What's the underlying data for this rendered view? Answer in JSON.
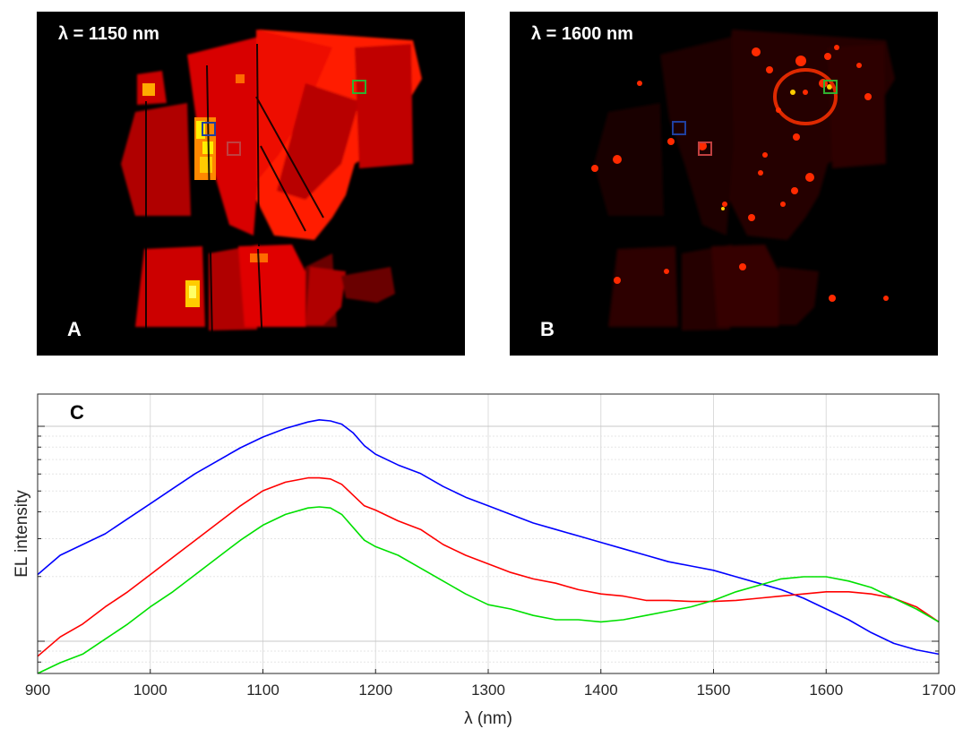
{
  "panels": [
    {
      "letter": "A",
      "wavelength_label": "λ = 1150 nm"
    },
    {
      "letter": "B",
      "wavelength_label": "λ = 1600 nm"
    }
  ],
  "colors": {
    "blue": "#0000ff",
    "red": "#ff0000",
    "green": "#00e000"
  },
  "chart_data": {
    "type": "line",
    "panel_letter": "C",
    "xlabel": "λ (nm)",
    "ylabel": "EL intensity",
    "xlim": [
      900,
      1700
    ],
    "xticks": [
      900,
      1000,
      1100,
      1200,
      1300,
      1400,
      1500,
      1600,
      1700
    ],
    "ylim": [
      -3.15,
      -1.85
    ],
    "yscale": "log",
    "yticks_major": [
      -3,
      -2.5,
      -2
    ],
    "grid": true,
    "legend": "none",
    "series": [
      {
        "color": "blue",
        "x": [
          900,
          920,
          940,
          960,
          980,
          1000,
          1020,
          1040,
          1060,
          1080,
          1100,
          1120,
          1140,
          1150,
          1160,
          1170,
          1180,
          1190,
          1200,
          1220,
          1240,
          1260,
          1280,
          1300,
          1320,
          1340,
          1360,
          1380,
          1400,
          1420,
          1440,
          1460,
          1480,
          1500,
          1520,
          1540,
          1560,
          1580,
          1600,
          1620,
          1640,
          1660,
          1680,
          1700
        ],
        "y": [
          -2.69,
          -2.6,
          -2.55,
          -2.5,
          -2.43,
          -2.36,
          -2.29,
          -2.22,
          -2.16,
          -2.1,
          -2.05,
          -2.01,
          -1.98,
          -1.97,
          -1.975,
          -1.99,
          -2.03,
          -2.09,
          -2.13,
          -2.18,
          -2.22,
          -2.28,
          -2.33,
          -2.37,
          -2.41,
          -2.45,
          -2.48,
          -2.51,
          -2.54,
          -2.57,
          -2.6,
          -2.63,
          -2.65,
          -2.67,
          -2.7,
          -2.73,
          -2.76,
          -2.8,
          -2.85,
          -2.9,
          -2.96,
          -3.01,
          -3.04,
          -3.06
        ]
      },
      {
        "color": "red",
        "x": [
          900,
          920,
          940,
          960,
          980,
          1000,
          1020,
          1040,
          1060,
          1080,
          1100,
          1120,
          1140,
          1150,
          1160,
          1170,
          1180,
          1190,
          1200,
          1220,
          1240,
          1260,
          1280,
          1300,
          1320,
          1340,
          1360,
          1380,
          1400,
          1420,
          1440,
          1460,
          1480,
          1500,
          1520,
          1540,
          1560,
          1580,
          1600,
          1620,
          1640,
          1660,
          1680,
          1700
        ],
        "y": [
          -3.07,
          -2.98,
          -2.92,
          -2.84,
          -2.77,
          -2.69,
          -2.61,
          -2.53,
          -2.45,
          -2.37,
          -2.3,
          -2.26,
          -2.24,
          -2.24,
          -2.245,
          -2.27,
          -2.32,
          -2.37,
          -2.39,
          -2.44,
          -2.48,
          -2.55,
          -2.6,
          -2.64,
          -2.68,
          -2.71,
          -2.73,
          -2.76,
          -2.78,
          -2.79,
          -2.81,
          -2.81,
          -2.815,
          -2.815,
          -2.81,
          -2.8,
          -2.79,
          -2.78,
          -2.77,
          -2.77,
          -2.78,
          -2.8,
          -2.84,
          -2.91
        ]
      },
      {
        "color": "green",
        "x": [
          900,
          920,
          940,
          960,
          980,
          1000,
          1020,
          1040,
          1060,
          1080,
          1100,
          1120,
          1140,
          1150,
          1160,
          1170,
          1180,
          1190,
          1200,
          1220,
          1240,
          1260,
          1280,
          1300,
          1320,
          1340,
          1360,
          1380,
          1400,
          1420,
          1440,
          1460,
          1480,
          1500,
          1520,
          1540,
          1560,
          1580,
          1600,
          1620,
          1640,
          1660,
          1680,
          1700
        ],
        "y": [
          -3.15,
          -3.1,
          -3.06,
          -2.99,
          -2.92,
          -2.84,
          -2.77,
          -2.69,
          -2.61,
          -2.53,
          -2.46,
          -2.41,
          -2.38,
          -2.375,
          -2.38,
          -2.41,
          -2.47,
          -2.53,
          -2.56,
          -2.6,
          -2.66,
          -2.72,
          -2.78,
          -2.83,
          -2.85,
          -2.88,
          -2.9,
          -2.9,
          -2.91,
          -2.9,
          -2.88,
          -2.86,
          -2.84,
          -2.81,
          -2.77,
          -2.74,
          -2.71,
          -2.7,
          -2.7,
          -2.72,
          -2.75,
          -2.8,
          -2.85,
          -2.91
        ]
      }
    ]
  }
}
